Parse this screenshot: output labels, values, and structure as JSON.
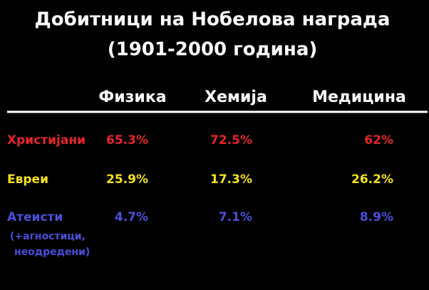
{
  "title": [
    "Добитници на Нобелова награда",
    "(1901-2000 година)"
  ],
  "table": {
    "columns": [
      "Физика",
      "Хемија",
      "Медицина"
    ],
    "rows": [
      {
        "label": "Христијани",
        "values": [
          "65.3%",
          "72.5%",
          "62%"
        ]
      },
      {
        "label": "Евреи",
        "values": [
          "25.9%",
          "17.3%",
          "26.2%"
        ]
      },
      {
        "label": "Атеисти",
        "note": [
          "(+агностици,",
          "неодредени)"
        ],
        "values": [
          "4.7%",
          "7.1%",
          "8.9%"
        ]
      }
    ]
  }
}
